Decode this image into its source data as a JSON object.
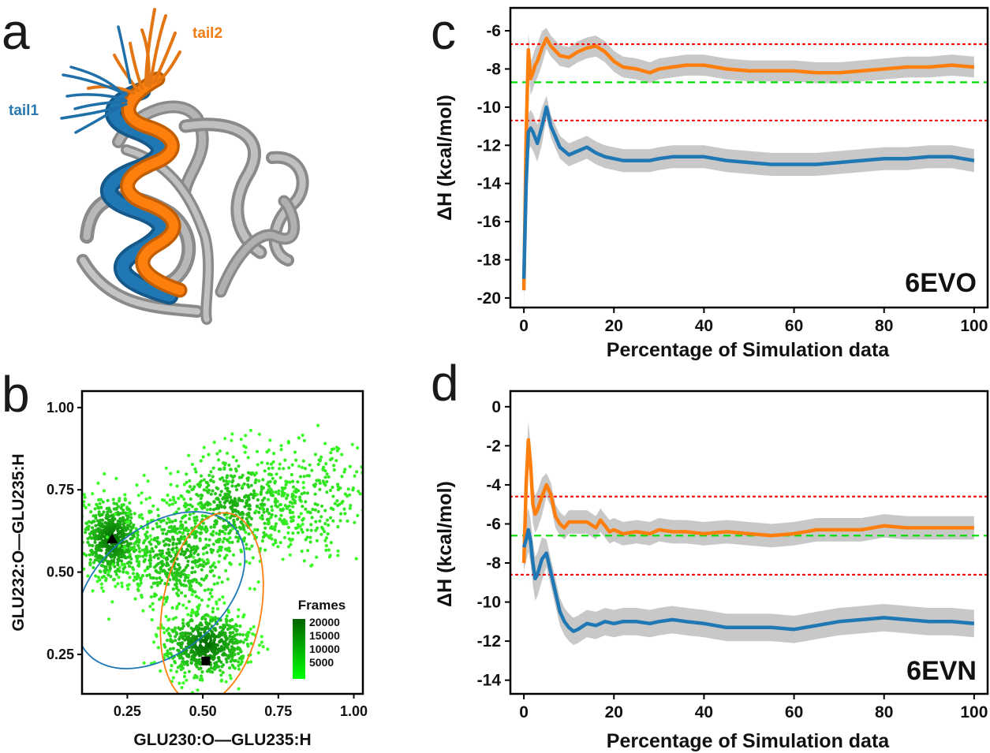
{
  "panels": {
    "a": {
      "letter": "a",
      "labels": {
        "tail1": "tail1",
        "tail2": "tail2"
      }
    },
    "b": {
      "letter": "b"
    },
    "c": {
      "letter": "c"
    },
    "d": {
      "letter": "d"
    }
  },
  "chart_data": [
    {
      "panel": "b",
      "type": "scatter",
      "xlabel": "GLU230:O—GLU235:H",
      "ylabel": "GLU232:O—GLU235:H",
      "xlim": [
        0.1,
        1.03
      ],
      "ylim": [
        0.13,
        1.05
      ],
      "xticks": [
        "0.25",
        "0.50",
        "0.75",
        "1.00"
      ],
      "yticks": [
        "0.25",
        "0.50",
        "0.75",
        "1.00"
      ],
      "clusters": [
        {
          "center": [
            0.2,
            0.6
          ],
          "spread": [
            0.05,
            0.06
          ],
          "density": "high"
        },
        {
          "center": [
            0.51,
            0.28
          ],
          "spread": [
            0.07,
            0.05
          ],
          "density": "high"
        },
        {
          "center": [
            0.42,
            0.55
          ],
          "spread": [
            0.09,
            0.08
          ],
          "density": "medium"
        },
        {
          "center": [
            0.6,
            0.7
          ],
          "spread": [
            0.1,
            0.08
          ],
          "density": "medium"
        },
        {
          "center": [
            0.85,
            0.72
          ],
          "spread": [
            0.1,
            0.1
          ],
          "density": "low"
        }
      ],
      "markers": [
        {
          "shape": "triangle",
          "x": 0.2,
          "y": 0.6
        },
        {
          "shape": "square",
          "x": 0.51,
          "y": 0.23
        }
      ],
      "ellipses": [
        {
          "color": "#1f77b4",
          "cx": 0.36,
          "cy": 0.445,
          "rx": 0.32,
          "ry": 0.19,
          "angle": -40
        },
        {
          "color": "#ff7f0e",
          "cx": 0.53,
          "cy": 0.39,
          "rx": 0.32,
          "ry": 0.15,
          "angle": -80
        }
      ],
      "colorbar": {
        "title": "Frames",
        "ticks": [
          "20000",
          "15000",
          "10000",
          "5000"
        ],
        "colors": [
          "#006400",
          "#00ff00"
        ]
      }
    },
    {
      "panel": "c",
      "type": "line",
      "tag": "6EVO",
      "xlabel": "Percentage of Simulation data",
      "ylabel": "ΔH (kcal/mol)",
      "xlim": [
        -3,
        103
      ],
      "ylim": [
        -20.5,
        -4.8
      ],
      "xticks": [
        0,
        20,
        40,
        60,
        80,
        100
      ],
      "yticks": [
        -6,
        -8,
        -10,
        -12,
        -14,
        -16,
        -18,
        -20
      ],
      "hlines": [
        {
          "y": -6.7,
          "color": "#ff0000",
          "style": "dotted"
        },
        {
          "y": -8.7,
          "color": "#00dd00",
          "style": "dashed"
        },
        {
          "y": -10.7,
          "color": "#ff0000",
          "style": "dotted"
        }
      ],
      "series": [
        {
          "color": "#ff7f0e",
          "x": [
            0,
            0.5,
            1,
            1.5,
            2,
            2.5,
            3,
            4,
            5,
            6,
            8,
            10,
            12,
            14,
            16,
            18,
            20,
            22,
            25,
            28,
            30,
            33,
            36,
            40,
            45,
            50,
            55,
            60,
            65,
            70,
            75,
            80,
            85,
            90,
            95,
            100
          ],
          "y": [
            -19.6,
            -11.5,
            -7.0,
            -8.5,
            -8.2,
            -7.8,
            -7.6,
            -6.9,
            -6.4,
            -6.8,
            -7.3,
            -7.4,
            -7.1,
            -6.9,
            -6.8,
            -7.1,
            -7.6,
            -7.9,
            -8.0,
            -8.2,
            -8.0,
            -7.9,
            -7.8,
            -7.8,
            -8.0,
            -8.1,
            -8.1,
            -8.1,
            -8.2,
            -8.2,
            -8.1,
            -8.0,
            -7.9,
            -7.9,
            -7.8,
            -7.9
          ],
          "band": 0.55
        },
        {
          "color": "#1f77b4",
          "x": [
            0,
            0.5,
            1,
            1.5,
            2,
            2.5,
            3,
            4,
            5,
            6,
            8,
            10,
            12,
            14,
            16,
            18,
            20,
            22,
            25,
            28,
            30,
            33,
            36,
            40,
            45,
            50,
            55,
            60,
            65,
            70,
            75,
            80,
            85,
            90,
            95,
            100
          ],
          "y": [
            -19.0,
            -14.0,
            -11.3,
            -11.1,
            -11.3,
            -11.6,
            -11.9,
            -11.0,
            -10.0,
            -11.0,
            -12.1,
            -12.5,
            -12.3,
            -12.1,
            -12.4,
            -12.6,
            -12.7,
            -12.8,
            -12.8,
            -12.8,
            -12.7,
            -12.6,
            -12.6,
            -12.6,
            -12.8,
            -12.9,
            -13.0,
            -13.0,
            -13.0,
            -12.9,
            -12.8,
            -12.7,
            -12.7,
            -12.6,
            -12.6,
            -12.8
          ],
          "band": 0.6
        }
      ]
    },
    {
      "panel": "d",
      "type": "line",
      "tag": "6EVN",
      "xlabel": "Percentage of Simulation data",
      "ylabel": "ΔH (kcal/mol)",
      "xlim": [
        -3,
        103
      ],
      "ylim": [
        -14.7,
        0.8
      ],
      "xticks": [
        0,
        20,
        40,
        60,
        80,
        100
      ],
      "yticks": [
        0,
        -2,
        -4,
        -6,
        -8,
        -10,
        -12,
        -14
      ],
      "hlines": [
        {
          "y": -4.6,
          "color": "#ff0000",
          "style": "dotted"
        },
        {
          "y": -6.6,
          "color": "#00dd00",
          "style": "dashed"
        },
        {
          "y": -8.6,
          "color": "#ff0000",
          "style": "dotted"
        }
      ],
      "series": [
        {
          "color": "#ff7f0e",
          "x": [
            0,
            0.5,
            1,
            1.5,
            2,
            2.5,
            3,
            4,
            5,
            6,
            7,
            8,
            9,
            10,
            12,
            14,
            16,
            17,
            18,
            19,
            20,
            22,
            25,
            28,
            30,
            33,
            36,
            40,
            45,
            50,
            55,
            60,
            65,
            70,
            75,
            80,
            85,
            90,
            95,
            100
          ],
          "y": [
            -8.0,
            -4.0,
            -1.7,
            -3.0,
            -5.0,
            -5.5,
            -5.3,
            -4.6,
            -4.0,
            -4.5,
            -5.6,
            -6.0,
            -6.2,
            -5.9,
            -5.9,
            -5.9,
            -6.2,
            -5.8,
            -6.1,
            -6.4,
            -6.3,
            -6.5,
            -6.4,
            -6.5,
            -6.3,
            -6.4,
            -6.4,
            -6.5,
            -6.4,
            -6.5,
            -6.6,
            -6.5,
            -6.3,
            -6.3,
            -6.3,
            -6.1,
            -6.2,
            -6.2,
            -6.2,
            -6.2
          ],
          "band": 0.6
        },
        {
          "color": "#1f77b4",
          "x": [
            0,
            0.5,
            1,
            1.5,
            2,
            2.5,
            3,
            4,
            5,
            6,
            7,
            8,
            9,
            10,
            11,
            12,
            14,
            16,
            18,
            20,
            22,
            25,
            28,
            30,
            33,
            36,
            40,
            45,
            50,
            55,
            60,
            65,
            70,
            75,
            80,
            85,
            90,
            95,
            100
          ],
          "y": [
            -7.2,
            -6.8,
            -6.3,
            -6.9,
            -8.0,
            -8.8,
            -8.6,
            -7.8,
            -7.5,
            -8.5,
            -9.5,
            -10.5,
            -11.0,
            -11.3,
            -11.5,
            -11.4,
            -11.1,
            -11.2,
            -11.0,
            -11.1,
            -11.0,
            -11.0,
            -11.1,
            -11.0,
            -10.9,
            -11.0,
            -11.1,
            -11.3,
            -11.3,
            -11.3,
            -11.4,
            -11.2,
            -11.0,
            -10.9,
            -10.8,
            -10.9,
            -11.0,
            -11.0,
            -11.1
          ],
          "band": 0.7
        }
      ]
    }
  ]
}
